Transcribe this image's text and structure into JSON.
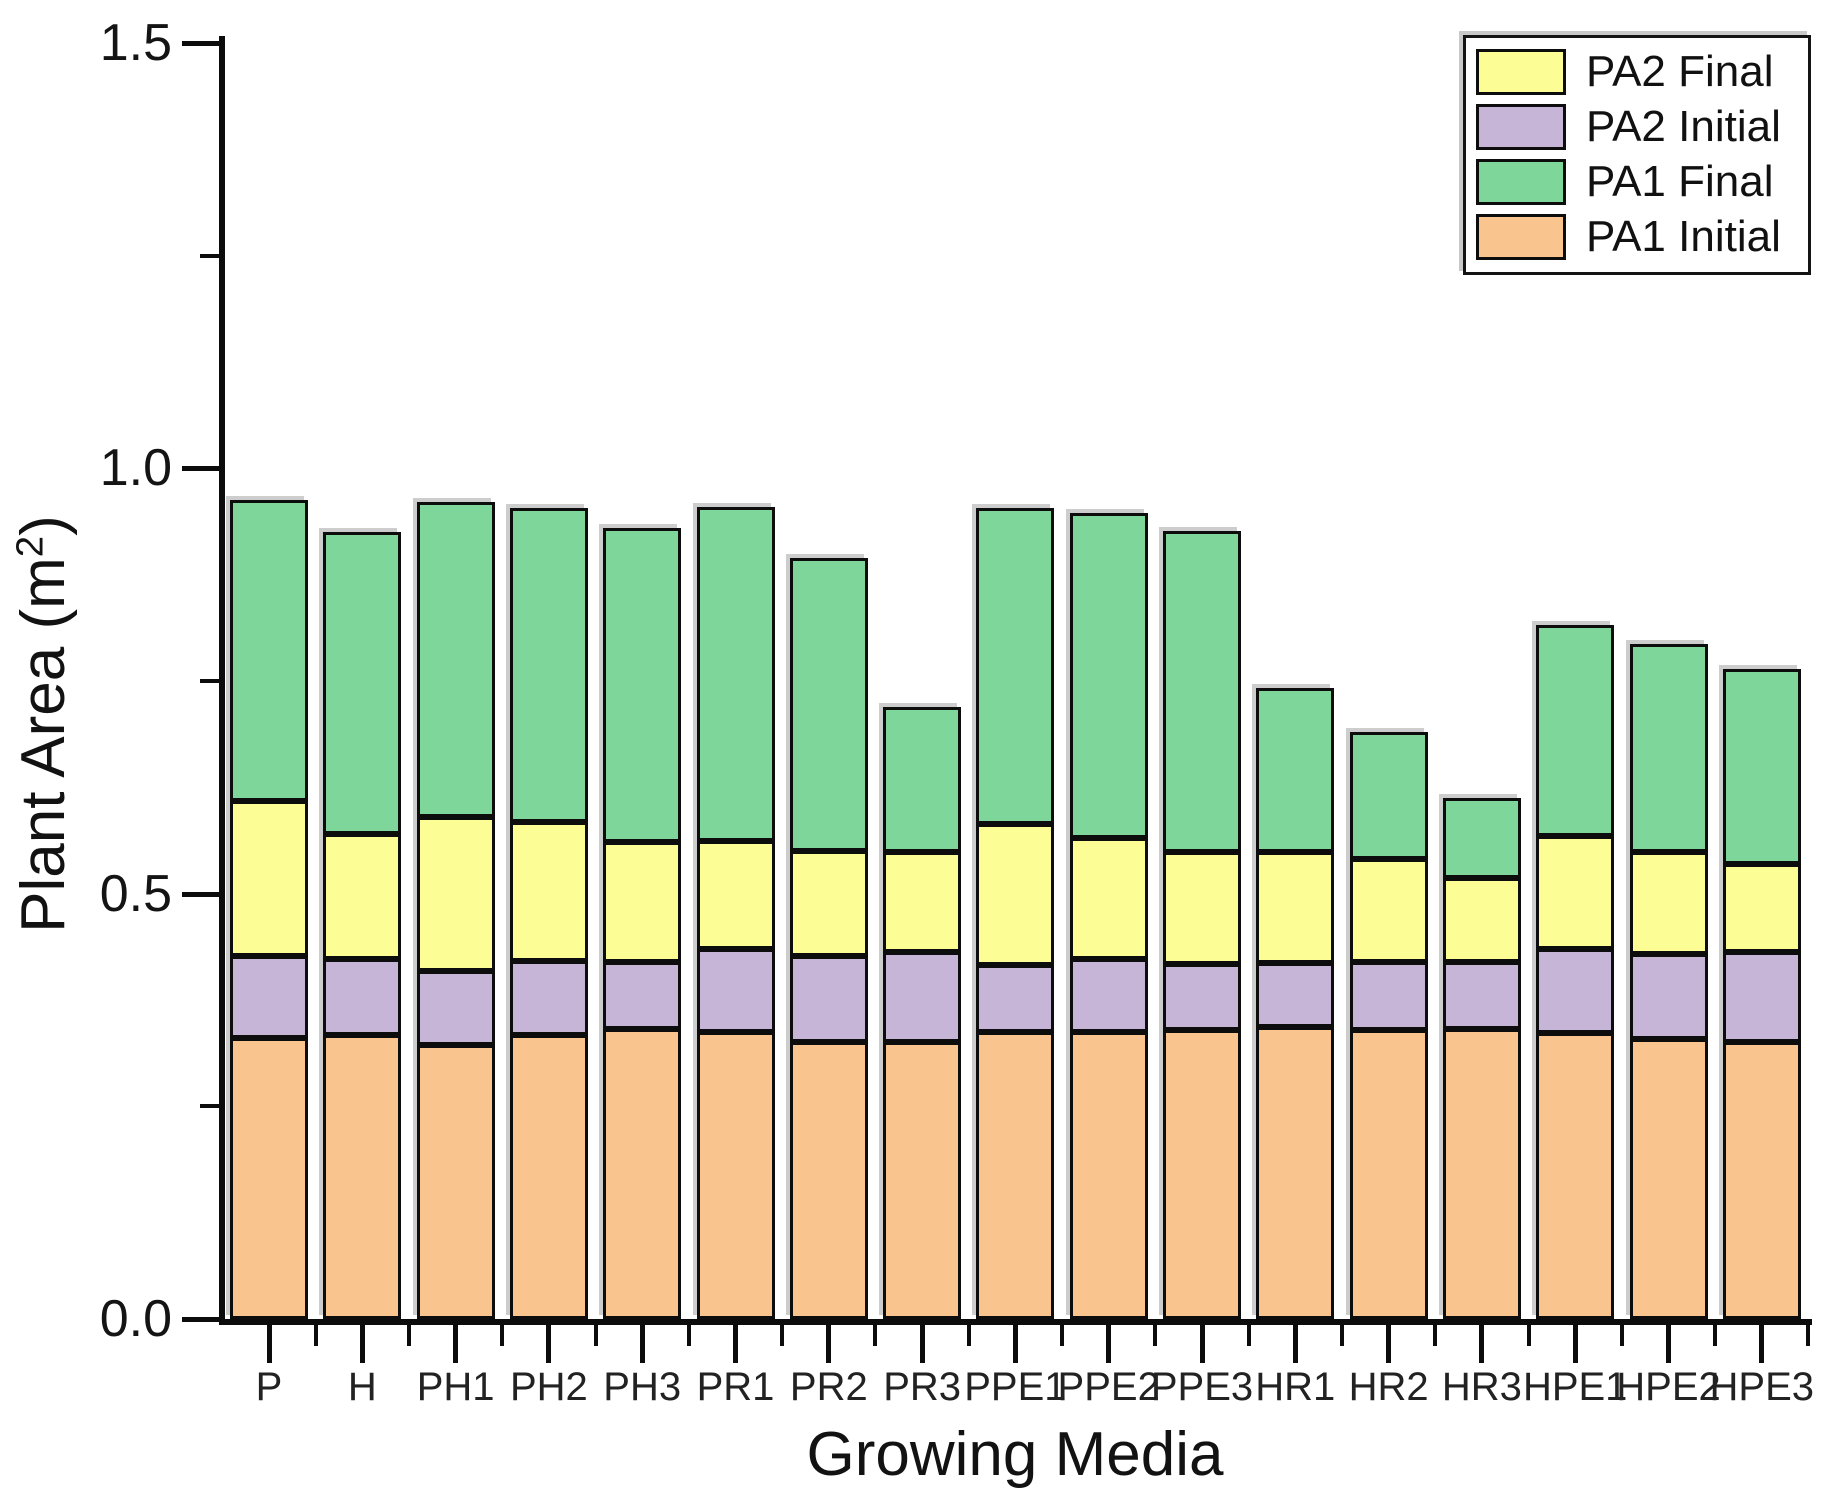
{
  "chart_data": {
    "type": "bar",
    "stacked": true,
    "title": "",
    "xlabel": "Growing Media",
    "ylabel": "Plant Area (m²)",
    "ylabel_parts": {
      "main": "Plant Area (m",
      "sup": "2",
      "end": ")"
    },
    "categories": [
      "P",
      "H",
      "PH1",
      "PH2",
      "PH3",
      "PR1",
      "PR2",
      "PR3",
      "PPE1",
      "PPE2",
      "PPE3",
      "HR1",
      "HR2",
      "HR3",
      "HPE1",
      "HPE2",
      "HPE3"
    ],
    "series": [
      {
        "name": "PA1 Initial",
        "color": "#FAC48E",
        "values": [
          0.33,
          0.334,
          0.322,
          0.334,
          0.341,
          0.337,
          0.326,
          0.326,
          0.337,
          0.337,
          0.34,
          0.343,
          0.34,
          0.341,
          0.336,
          0.329,
          0.326
        ]
      },
      {
        "name": "PA2 Initial",
        "color": "#C6B5D7",
        "values": [
          0.097,
          0.089,
          0.087,
          0.087,
          0.079,
          0.098,
          0.101,
          0.105,
          0.079,
          0.086,
          0.077,
          0.075,
          0.08,
          0.079,
          0.099,
          0.1,
          0.105
        ]
      },
      {
        "name": "PA2 Final",
        "color": "#FDFD96",
        "values": [
          0.182,
          0.147,
          0.181,
          0.163,
          0.141,
          0.127,
          0.123,
          0.118,
          0.166,
          0.142,
          0.132,
          0.131,
          0.121,
          0.098,
          0.133,
          0.12,
          0.104
        ]
      },
      {
        "name": "PA1 Final",
        "color": "#7ED69B",
        "values": [
          0.354,
          0.355,
          0.37,
          0.369,
          0.369,
          0.393,
          0.345,
          0.17,
          0.371,
          0.383,
          0.377,
          0.193,
          0.149,
          0.095,
          0.248,
          0.244,
          0.229
        ]
      }
    ],
    "totals": [
      0.963,
      0.925,
      0.96,
      0.953,
      0.93,
      0.955,
      0.895,
      0.719,
      0.953,
      0.948,
      0.926,
      0.742,
      0.69,
      0.613,
      0.816,
      0.793,
      0.764
    ],
    "legend": {
      "position": "top-right",
      "entries": [
        "PA2 Final",
        "PA2 Initial",
        "PA1 Final",
        "PA1 Initial"
      ]
    },
    "ylim": [
      0.0,
      1.5
    ],
    "yticks_major": [
      {
        "label": "0.0",
        "value": 0.0
      },
      {
        "label": "0.5",
        "value": 0.5
      },
      {
        "label": "1.0",
        "value": 1.0
      },
      {
        "label": "1.5",
        "value": 1.5
      }
    ],
    "yticks_minor": [
      0.25,
      0.75,
      1.25
    ],
    "grid": false,
    "bar_edge_color": "#0d0d0d",
    "background_color": "#ffffff"
  }
}
